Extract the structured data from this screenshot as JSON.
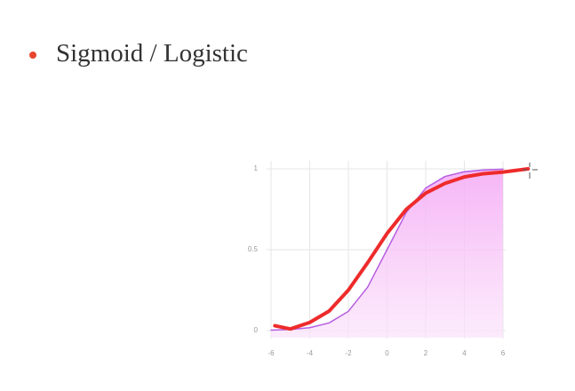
{
  "bullet": "Sigmoid / Logistic",
  "chart_data": {
    "type": "line",
    "xlim": [
      -6.5,
      7.5
    ],
    "ylim": [
      -0.05,
      1.05
    ],
    "xticks": [
      -6,
      -4,
      -2,
      0,
      2,
      4,
      6
    ],
    "yticks": [
      0,
      0.5,
      1
    ],
    "grid": true,
    "series": [
      {
        "color": "#b65ee0",
        "fill": true,
        "x": [
          -6,
          -5,
          -4,
          -3,
          -2,
          -1,
          0,
          1,
          2,
          3,
          4,
          5,
          6
        ],
        "values": [
          0.0025,
          0.0067,
          0.018,
          0.047,
          0.119,
          0.269,
          0.5,
          0.731,
          0.881,
          0.953,
          0.982,
          0.993,
          0.998
        ]
      },
      {
        "color": "#ee2b2b",
        "fill": false,
        "x": [
          -5.8,
          -5,
          -4,
          -3,
          -2,
          -1,
          0,
          1,
          2,
          3,
          4,
          5,
          6,
          7.3
        ],
        "values": [
          0.03,
          0.01,
          0.05,
          0.12,
          0.25,
          0.42,
          0.6,
          0.75,
          0.85,
          0.91,
          0.95,
          0.97,
          0.98,
          1.0
        ]
      }
    ]
  }
}
